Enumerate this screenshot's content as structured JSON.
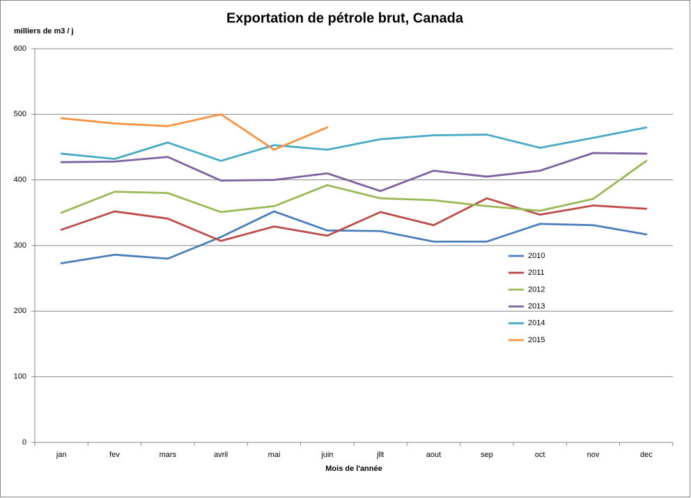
{
  "chart_data": {
    "type": "line",
    "title": "Exportation de pétrole brut, Canada",
    "y_label": "milliers de m3 / j",
    "x_label": "Mois de l'année",
    "categories": [
      "jan",
      "fev",
      "mars",
      "avril",
      "mai",
      "juin",
      "jllt",
      "aout",
      "sep",
      "oct",
      "nov",
      "dec"
    ],
    "series": [
      {
        "name": "2010",
        "color": "#4a7ebb",
        "values": [
          273,
          286,
          280,
          313,
          352,
          323,
          322,
          306,
          306,
          333,
          331,
          317
        ]
      },
      {
        "name": "2011",
        "color": "#be4b48",
        "values": [
          324,
          352,
          341,
          307,
          329,
          315,
          351,
          331,
          372,
          347,
          361,
          356
        ]
      },
      {
        "name": "2012",
        "color": "#98b954",
        "values": [
          350,
          382,
          380,
          351,
          360,
          392,
          372,
          369,
          360,
          353,
          371,
          429
        ]
      },
      {
        "name": "2013",
        "color": "#7d60a0",
        "values": [
          427,
          428,
          435,
          399,
          400,
          410,
          383,
          414,
          405,
          414,
          441,
          440
        ]
      },
      {
        "name": "2014",
        "color": "#46aac5",
        "values": [
          440,
          432,
          457,
          429,
          453,
          446,
          462,
          468,
          469,
          449,
          464,
          480
        ]
      },
      {
        "name": "2015",
        "color": "#f69240",
        "values": [
          494,
          486,
          482,
          500,
          446,
          480,
          null,
          null,
          null,
          null,
          null,
          null
        ]
      }
    ],
    "ylim": [
      0,
      600
    ],
    "yticks": [
      0,
      100,
      200,
      300,
      400,
      500,
      600
    ],
    "grid": true
  }
}
